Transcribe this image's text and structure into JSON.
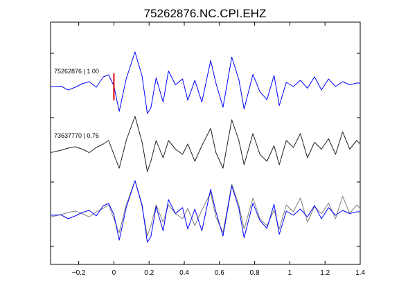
{
  "chart_data": {
    "type": "line",
    "title": "75262876.NC.CPI.EHZ",
    "xlabel": "",
    "ylabel": "",
    "xlim": [
      -0.36,
      1.4
    ],
    "x_ticks": [
      -0.2,
      0,
      0.2,
      0.4,
      0.6,
      0.8,
      1,
      1.2,
      1.4
    ],
    "x_tick_labels": [
      "−0.2",
      "0",
      "0.2",
      "0.4",
      "0.6",
      "0.8",
      "1",
      "1.2",
      "1.4"
    ],
    "grid": false,
    "pick_marker": {
      "x": 0,
      "color": "#e00000"
    },
    "trace_labels": [
      {
        "text": "75262876 | 1.00"
      },
      {
        "text": "73637770 | 0.76"
      }
    ],
    "series": [
      {
        "id": "template",
        "color": "#0000ff",
        "panel": 0,
        "x": [
          -0.36,
          -0.3,
          -0.26,
          -0.22,
          -0.18,
          -0.14,
          -0.1,
          -0.06,
          -0.03,
          0,
          0.03,
          0.07,
          0.12,
          0.16,
          0.19,
          0.21,
          0.24,
          0.28,
          0.31,
          0.35,
          0.39,
          0.42,
          0.46,
          0.5,
          0.55,
          0.58,
          0.62,
          0.67,
          0.71,
          0.74,
          0.79,
          0.83,
          0.87,
          0.91,
          0.94,
          0.98,
          1.02,
          1.06,
          1.1,
          1.14,
          1.18,
          1.22,
          1.26,
          1.3,
          1.34,
          1.38,
          1.4
        ],
        "y": [
          0,
          0.01,
          -0.1,
          -0.02,
          0.08,
          0.14,
          -0.02,
          0.28,
          0.34,
          0.02,
          -0.72,
          0.22,
          1.0,
          0.3,
          -0.78,
          -0.62,
          0.25,
          -0.45,
          0.45,
          0.05,
          0.22,
          -0.4,
          0.18,
          -0.45,
          0.75,
          0.1,
          -0.6,
          0.85,
          0.2,
          -0.65,
          0.35,
          -0.15,
          -0.38,
          0.32,
          -0.55,
          0.12,
          0.0,
          0.18,
          -0.05,
          0.28,
          -0.1,
          0.22,
          0.0,
          0.14,
          0.05,
          0.1,
          0.1
        ]
      },
      {
        "id": "match",
        "color": "#202020",
        "panel": 1,
        "x": [
          -0.36,
          -0.3,
          -0.26,
          -0.22,
          -0.18,
          -0.14,
          -0.1,
          -0.06,
          -0.03,
          0,
          0.03,
          0.07,
          0.12,
          0.16,
          0.19,
          0.21,
          0.24,
          0.28,
          0.31,
          0.35,
          0.39,
          0.42,
          0.46,
          0.5,
          0.55,
          0.58,
          0.62,
          0.67,
          0.71,
          0.74,
          0.79,
          0.83,
          0.87,
          0.91,
          0.94,
          0.98,
          1.02,
          1.06,
          1.1,
          1.14,
          1.18,
          1.22,
          1.26,
          1.3,
          1.34,
          1.38,
          1.4
        ],
        "y": [
          -0.05,
          0.02,
          0.08,
          0.12,
          0.05,
          -0.05,
          0.1,
          0.2,
          0.3,
          -0.1,
          -0.5,
          0.3,
          1.0,
          0.25,
          -0.6,
          -0.3,
          0.3,
          -0.2,
          0.3,
          0.05,
          -0.1,
          0.2,
          -0.3,
          0.15,
          0.65,
          -0.05,
          -0.5,
          0.9,
          0.3,
          -0.4,
          0.5,
          -0.1,
          -0.3,
          0.15,
          -0.4,
          0.3,
          0.1,
          0.5,
          -0.2,
          0.25,
          0.05,
          0.35,
          -0.1,
          0.55,
          0.05,
          0.3,
          0.2
        ]
      }
    ]
  }
}
